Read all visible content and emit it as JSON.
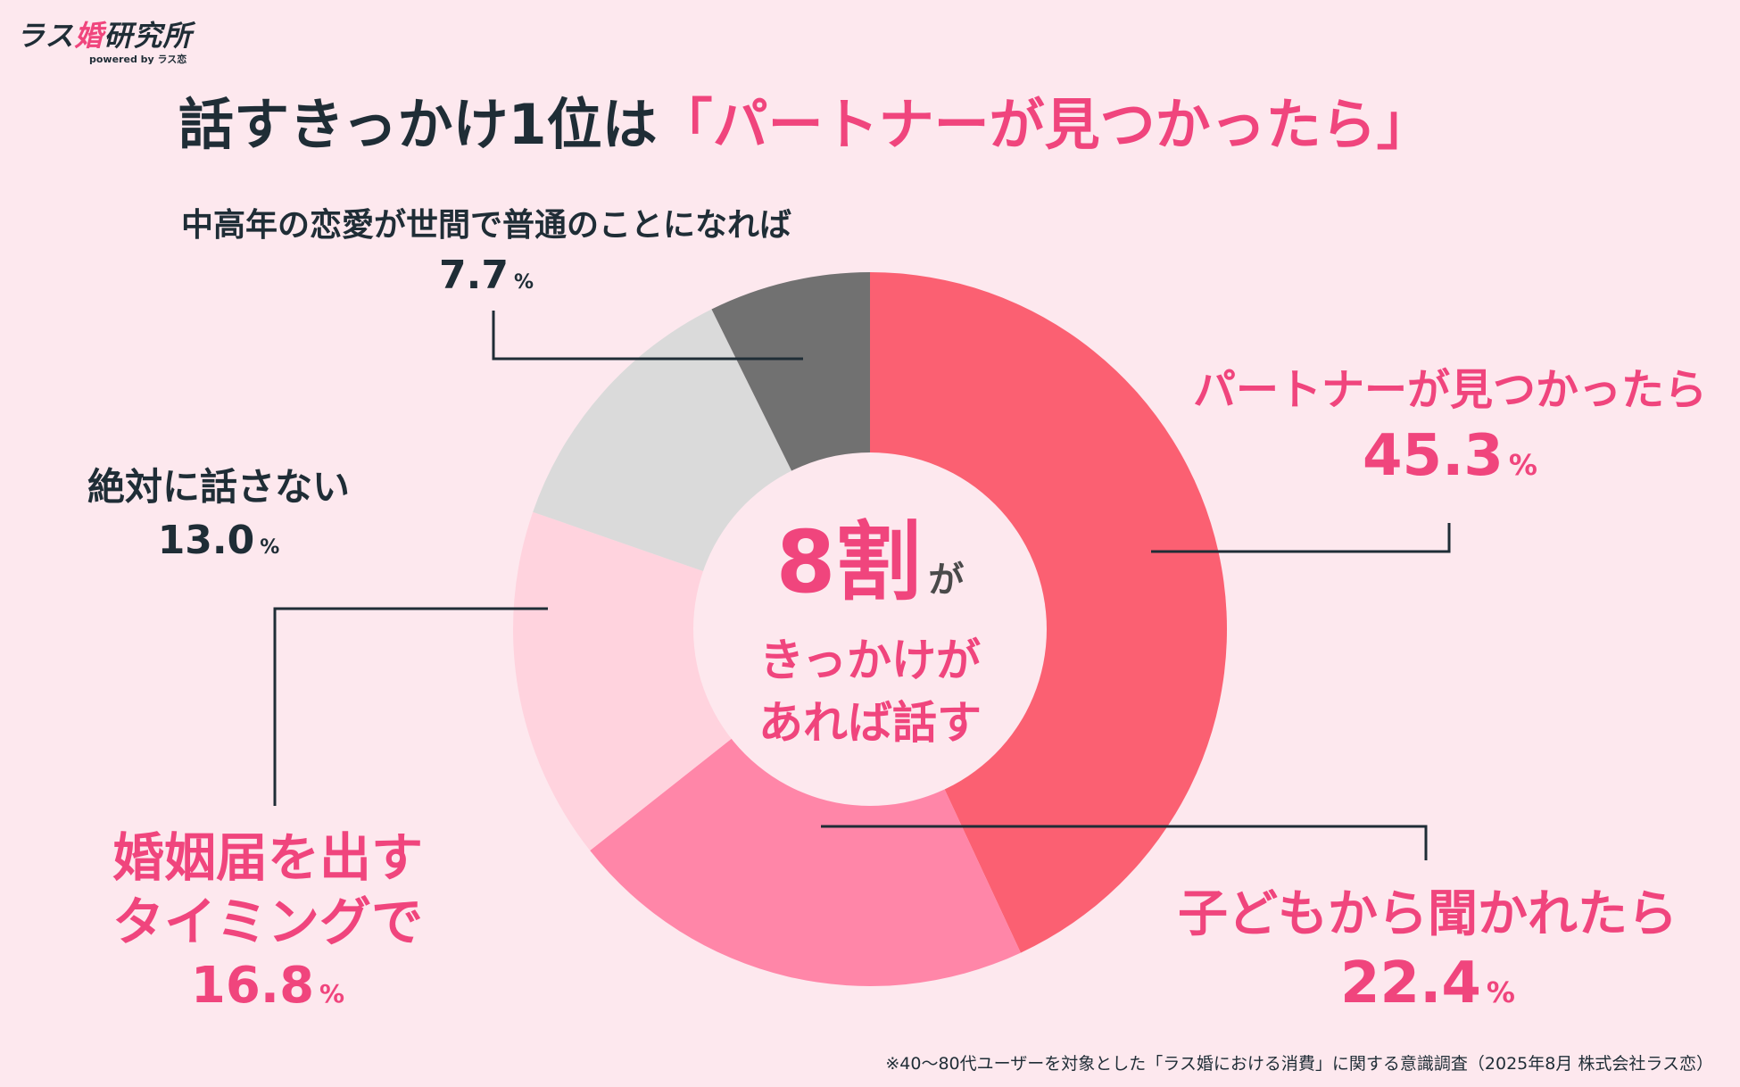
{
  "logo": {
    "part1": "ラス",
    "part2": "婚",
    "part3": "研究所",
    "sub": "powered by ラス恋"
  },
  "headline": {
    "lead": "話すきっかけ1位は",
    "accent": "「パートナーが見つかったら」"
  },
  "center": {
    "top": "8割",
    "top_small": "が",
    "line1": "きっかけが",
    "line2": "あれば話す"
  },
  "footnote": "※40〜80代ユーザーを対象とした「ラス婚における消費」に関する意識調査（2025年8月 株式会社ラス恋）",
  "chart_data": {
    "type": "pie",
    "unit": "%",
    "start_angle_deg": 0,
    "direction": "clockwise",
    "slices": [
      {
        "label": "パートナーが見つかったら",
        "value": 45.3,
        "value_text": "45.3",
        "color": "#fb6072"
      },
      {
        "label": "子どもから聞かれたら",
        "value": 22.4,
        "value_text": "22.4",
        "color": "#ff86a8"
      },
      {
        "label_lines": [
          "婚姻届を出す",
          "タイミングで"
        ],
        "label": "婚姻届を出すタイミングで",
        "value": 16.8,
        "value_text": "16.8",
        "color": "#ffd3de"
      },
      {
        "label": "絶対に話さない",
        "value": 13.0,
        "value_text": "13.0",
        "color": "#dadada"
      },
      {
        "label": "中高年の恋愛が世間で普通のことになれば",
        "value": 7.7,
        "value_text": "7.7",
        "color": "#717171"
      }
    ]
  }
}
